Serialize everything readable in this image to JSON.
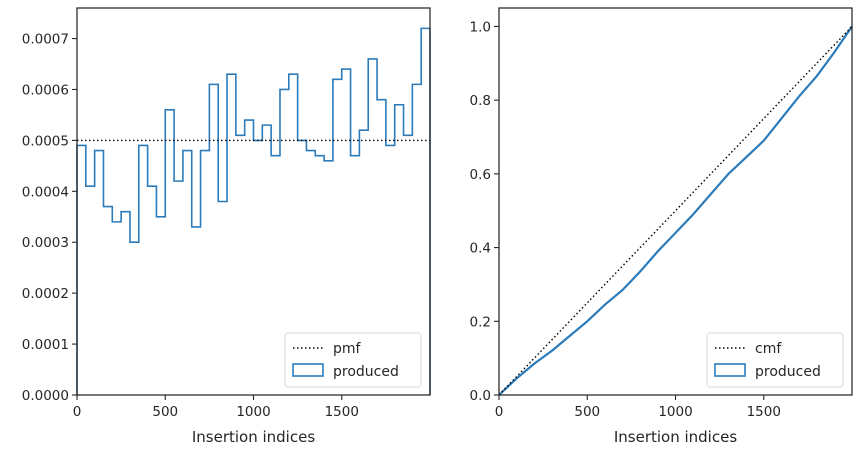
{
  "chart_data": [
    {
      "type": "step-histogram",
      "xlabel": "Insertion indices",
      "ylabel": "",
      "xlim": [
        0,
        2000
      ],
      "ylim": [
        0,
        0.00076
      ],
      "xticks": [
        0,
        500,
        1000,
        1500
      ],
      "xtick_labels": [
        "0",
        "500",
        "1000",
        "1500"
      ],
      "yticks": [
        0,
        0.0001,
        0.0002,
        0.0003,
        0.0004,
        0.0005,
        0.0006,
        0.0007
      ],
      "ytick_labels": [
        "0.0000",
        "0.0001",
        "0.0002",
        "0.0003",
        "0.0004",
        "0.0005",
        "0.0006",
        "0.0007"
      ],
      "grid": false,
      "legend_position": "lower-right",
      "bin_edges": [
        0,
        50,
        100,
        150,
        200,
        250,
        300,
        350,
        400,
        450,
        500,
        550,
        600,
        650,
        700,
        750,
        800,
        850,
        900,
        950,
        1000,
        1050,
        1100,
        1150,
        1200,
        1250,
        1300,
        1350,
        1400,
        1450,
        1500,
        1550,
        1600,
        1650,
        1700,
        1750,
        1800,
        1850,
        1900,
        1950,
        2000
      ],
      "series": [
        {
          "name": "produced",
          "style": "step",
          "color": "#2b7bba",
          "values": [
            0.00049,
            0.00041,
            0.00048,
            0.00037,
            0.00034,
            0.00036,
            0.0003,
            0.00049,
            0.00041,
            0.00035,
            0.00056,
            0.00042,
            0.00048,
            0.00033,
            0.00048,
            0.00061,
            0.00038,
            0.00063,
            0.00051,
            0.00054,
            0.0005,
            0.00053,
            0.00047,
            0.0006,
            0.00063,
            0.0005,
            0.00048,
            0.00047,
            0.00046,
            0.00062,
            0.00064,
            0.00047,
            0.00052,
            0.00066,
            0.00058,
            0.00049,
            0.00057,
            0.00051,
            0.00061,
            0.00072
          ]
        },
        {
          "name": "pmf",
          "style": "dotted",
          "color": "#000000",
          "value": 0.0005
        }
      ]
    },
    {
      "type": "line",
      "xlabel": "Insertion indices",
      "ylabel": "",
      "xlim": [
        0,
        2000
      ],
      "ylim": [
        0,
        1.05
      ],
      "xticks": [
        0,
        500,
        1000,
        1500
      ],
      "xtick_labels": [
        "0",
        "500",
        "1000",
        "1500"
      ],
      "yticks": [
        0,
        0.2,
        0.4,
        0.6,
        0.8,
        1.0
      ],
      "ytick_labels": [
        "0.0",
        "0.2",
        "0.4",
        "0.6",
        "0.8",
        "1.0"
      ],
      "grid": false,
      "legend_position": "lower-right",
      "series": [
        {
          "name": "produced",
          "style": "step",
          "color": "#2b7bba",
          "x": [
            0,
            100,
            200,
            300,
            400,
            500,
            600,
            700,
            800,
            900,
            1000,
            1100,
            1200,
            1300,
            1400,
            1500,
            1600,
            1700,
            1800,
            1900,
            2000
          ],
          "y": [
            0,
            0.045,
            0.085,
            0.12,
            0.16,
            0.2,
            0.245,
            0.285,
            0.335,
            0.39,
            0.44,
            0.49,
            0.545,
            0.6,
            0.645,
            0.69,
            0.75,
            0.81,
            0.865,
            0.93,
            1.0
          ]
        },
        {
          "name": "cmf",
          "style": "dotted",
          "color": "#000000",
          "x": [
            0,
            2000
          ],
          "y": [
            0,
            1.0
          ]
        }
      ]
    }
  ]
}
